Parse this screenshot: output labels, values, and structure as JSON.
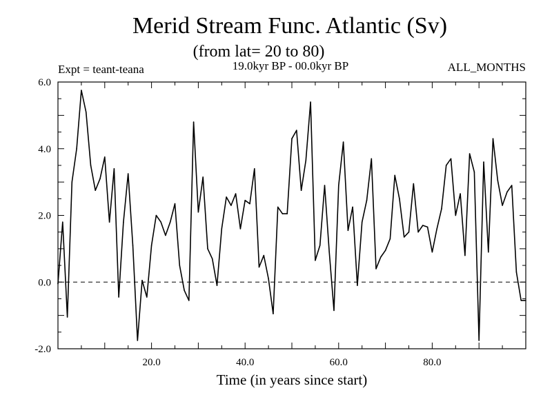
{
  "chart_data": {
    "type": "line",
    "title": "Merid Stream Func. Atlantic (Sv)",
    "subtitle": "(from lat= 20 to 80)",
    "expt_label": "Expt = teant-teana",
    "period_label": "19.0kyr BP - 00.0kyr BP",
    "months_label": "ALL_MONTHS",
    "xlabel": "Time (in years since start)",
    "ylabel": "",
    "xlim": [
      0,
      100
    ],
    "ylim": [
      -2.0,
      6.0
    ],
    "x_ticks": [
      20,
      40,
      60,
      80
    ],
    "x_tick_labels": [
      "20.0",
      "40.0",
      "60.0",
      "80.0"
    ],
    "y_ticks": [
      -2,
      0,
      2,
      4,
      6
    ],
    "y_tick_labels": [
      "-2.0",
      "0.0",
      "2.0",
      "4.0",
      "6.0"
    ],
    "reference_line": {
      "y": 0.0,
      "style": "dashed"
    },
    "series": [
      {
        "name": "teant-teana",
        "x": [
          0,
          1,
          2,
          3,
          4,
          5,
          6,
          7,
          8,
          9,
          10,
          11,
          12,
          13,
          14,
          15,
          16,
          17,
          18,
          19,
          20,
          21,
          22,
          23,
          24,
          25,
          26,
          27,
          28,
          29,
          30,
          31,
          32,
          33,
          34,
          35,
          36,
          37,
          38,
          39,
          40,
          41,
          42,
          43,
          44,
          45,
          46,
          47,
          48,
          49,
          50,
          51,
          52,
          53,
          54,
          55,
          56,
          57,
          58,
          59,
          60,
          61,
          62,
          63,
          64,
          65,
          66,
          67,
          68,
          69,
          70,
          71,
          72,
          73,
          74,
          75,
          76,
          77,
          78,
          79,
          80,
          81,
          82,
          83,
          84,
          85,
          86,
          87,
          88,
          89,
          90,
          91,
          92,
          93,
          94,
          95,
          96,
          97,
          98,
          99,
          100
        ],
        "values": [
          -0.05,
          1.8,
          -1.05,
          3.0,
          4.0,
          5.75,
          5.1,
          3.5,
          2.75,
          3.1,
          3.75,
          1.8,
          3.4,
          -0.45,
          1.8,
          3.25,
          1.1,
          -1.75,
          0.05,
          -0.45,
          1.1,
          2.0,
          1.8,
          1.4,
          1.8,
          2.35,
          0.5,
          -0.25,
          -0.55,
          4.8,
          2.1,
          3.15,
          1.0,
          0.7,
          -0.1,
          1.6,
          2.55,
          2.3,
          2.65,
          1.6,
          2.45,
          2.35,
          3.4,
          0.45,
          0.8,
          0.1,
          -0.95,
          2.25,
          2.05,
          2.05,
          4.3,
          4.55,
          2.75,
          3.65,
          5.4,
          0.65,
          1.1,
          2.9,
          0.9,
          -0.85,
          2.9,
          4.2,
          1.55,
          2.25,
          -0.1,
          1.8,
          2.45,
          3.7,
          0.4,
          0.75,
          0.95,
          1.3,
          3.2,
          2.5,
          1.35,
          1.5,
          2.95,
          1.5,
          1.7,
          1.65,
          0.9,
          1.6,
          2.2,
          3.5,
          3.7,
          2.0,
          2.65,
          0.8,
          3.85,
          3.3,
          -1.75,
          3.6,
          0.9,
          4.3,
          3.05,
          2.3,
          2.7,
          2.9,
          0.3,
          -0.55,
          -0.55
        ]
      }
    ]
  }
}
